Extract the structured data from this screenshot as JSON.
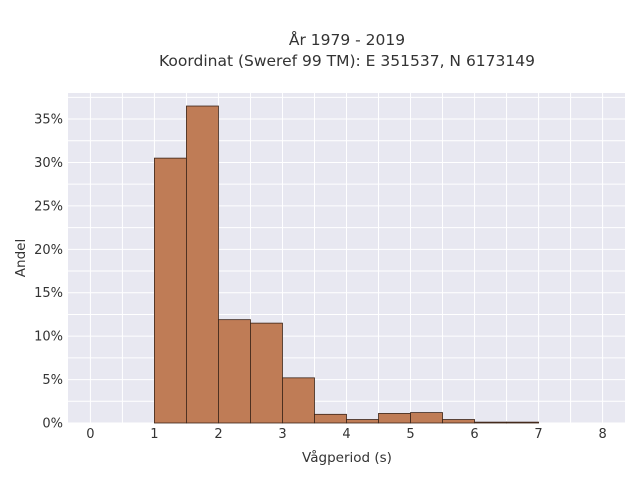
{
  "chart_data": {
    "type": "bar",
    "title_line1": "År 1979 - 2019",
    "title_line2": "Koordinat (Sweref 99 TM): E 351537, N 6173149",
    "xlabel": "Vågperiod (s)",
    "ylabel": "Andel",
    "xlim": [
      -0.35,
      8.35
    ],
    "ylim": [
      0,
      0.38
    ],
    "grid": true,
    "x_ticks": [
      0,
      1,
      2,
      3,
      4,
      5,
      6,
      7,
      8
    ],
    "x_tick_labels": [
      "0",
      "1",
      "2",
      "3",
      "4",
      "5",
      "6",
      "7",
      "8"
    ],
    "y_ticks": [
      0,
      0.05,
      0.1,
      0.15,
      0.2,
      0.25,
      0.3,
      0.35
    ],
    "y_tick_labels": [
      "0%",
      "5%",
      "10%",
      "15%",
      "20%",
      "25%",
      "30%",
      "35%"
    ],
    "bin_width": 0.5,
    "bins": [
      {
        "x_start": 1.0,
        "value": 0.305
      },
      {
        "x_start": 1.5,
        "value": 0.365
      },
      {
        "x_start": 2.0,
        "value": 0.119
      },
      {
        "x_start": 2.5,
        "value": 0.115
      },
      {
        "x_start": 3.0,
        "value": 0.052
      },
      {
        "x_start": 3.5,
        "value": 0.01
      },
      {
        "x_start": 4.0,
        "value": 0.004
      },
      {
        "x_start": 4.5,
        "value": 0.011
      },
      {
        "x_start": 5.0,
        "value": 0.012
      },
      {
        "x_start": 5.5,
        "value": 0.004
      },
      {
        "x_start": 6.0,
        "value": 0.001
      },
      {
        "x_start": 6.5,
        "value": 0.001
      }
    ],
    "colors": {
      "bar_fill": "#bf7c56",
      "bar_stroke": "#3b2418",
      "plot_background": "#e8e8f1",
      "grid": "#ffffff"
    }
  }
}
